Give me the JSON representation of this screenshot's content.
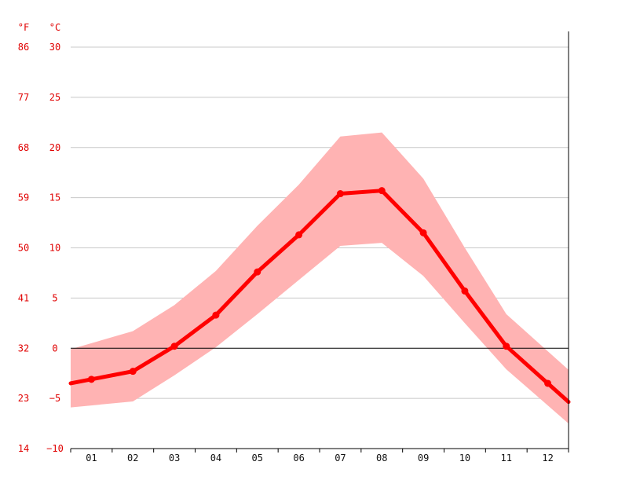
{
  "chart_data": {
    "type": "line",
    "categories": [
      "01",
      "02",
      "03",
      "04",
      "05",
      "06",
      "07",
      "08",
      "09",
      "10",
      "11",
      "12"
    ],
    "series": [
      {
        "values": [
          -3.1,
          -2.3,
          0.2,
          3.3,
          7.6,
          11.3,
          15.4,
          15.7,
          11.5,
          5.7,
          0.2,
          -3.5
        ]
      }
    ],
    "band": {
      "upper": [
        0.5,
        1.7,
        4.3,
        7.7,
        12.2,
        16.3,
        21.1,
        21.5,
        16.9,
        10.0,
        3.4,
        -0.3
      ],
      "lower": [
        -5.7,
        -5.3,
        -2.7,
        0.1,
        3.4,
        6.8,
        10.2,
        10.5,
        7.2,
        2.5,
        -2.1,
        -5.7
      ]
    },
    "y_units": {
      "celsius": "°C",
      "fahrenheit": "°F"
    },
    "y_ticks_celsius": [
      "30",
      "25",
      "20",
      "15",
      "10",
      "5",
      "0",
      "−5",
      "−10"
    ],
    "y_ticks_fahrenheit": [
      "86",
      "77",
      "68",
      "59",
      "50",
      "41",
      "32",
      "23",
      "14"
    ],
    "ylim": [
      -10,
      31.5
    ],
    "grid": true,
    "colors": {
      "line": "#ff0000",
      "band": "#ffb3b3",
      "axis_text": "#e00000",
      "grid": "#c8c8c8"
    }
  }
}
